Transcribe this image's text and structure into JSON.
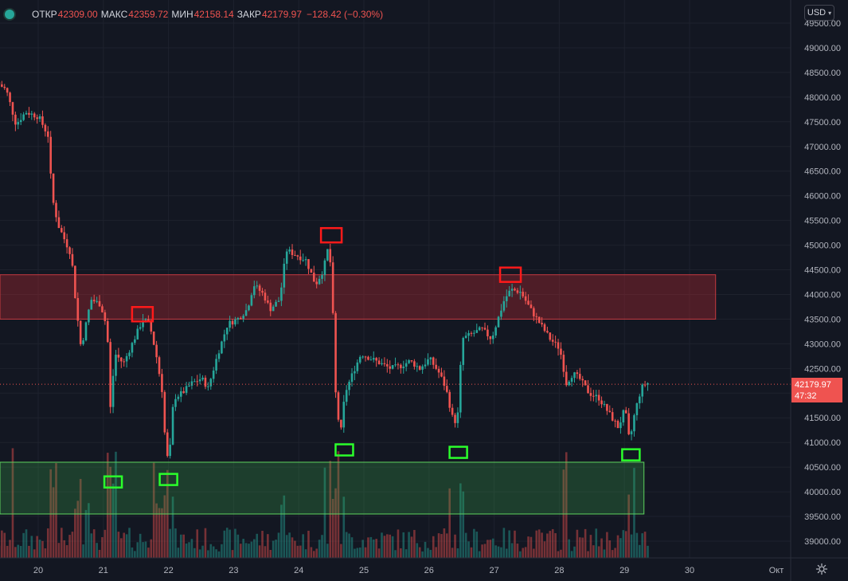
{
  "legend": {
    "open_label": "ОТКР",
    "open": "42309.00",
    "high_label": "МАКС",
    "high": "42359.72",
    "low_label": "МИН",
    "low": "42158.14",
    "close_label": "ЗАКР",
    "close": "42179.97",
    "change": "−128.42 (−0.30%)"
  },
  "currency": "USD",
  "last_price": {
    "value": "42179.97",
    "countdown": "47:32"
  },
  "colors": {
    "up": "#26a69a",
    "down": "#ef5350",
    "background": "#131722",
    "resistance_zone": "#5c1f24",
    "support_zone": "#1d4a2a",
    "marker_red": "#ff1a1a",
    "marker_green": "#2bff2b"
  },
  "chart_data": {
    "type": "candlestick",
    "symbol_timeframe": "hourly",
    "price_axis": {
      "min": 38800,
      "max": 49650,
      "ticks": [
        49500,
        49000,
        48500,
        48000,
        47500,
        47000,
        46500,
        46000,
        45500,
        45000,
        44500,
        44000,
        43500,
        43000,
        42500,
        42000,
        41500,
        41000,
        40500,
        40000,
        39500,
        39000
      ],
      "tick_labels": [
        "49500.00",
        "49000.00",
        "48500.00",
        "48000.00",
        "47500.00",
        "47000.00",
        "46500.00",
        "46000.00",
        "45500.00",
        "45000.00",
        "44500.00",
        "44000.00",
        "43500.00",
        "43000.00",
        "42500.00",
        "42000.00",
        "41500.00",
        "41000.00",
        "40500.00",
        "40000.00",
        "39500.00",
        "39000.00"
      ]
    },
    "time_axis": {
      "labels": [
        "20",
        "21",
        "22",
        "23",
        "24",
        "25",
        "26",
        "27",
        "28",
        "29",
        "30",
        "Окт"
      ],
      "day_start": 19.4,
      "day_end": 30.4
    },
    "last_price_line": 42179.97,
    "zones": [
      {
        "kind": "resistance",
        "day_from": 19.4,
        "day_to": 30.4,
        "price_low": 43500,
        "price_high": 44400
      },
      {
        "kind": "support",
        "day_from": 19.4,
        "day_to": 29.3,
        "price_low": 39550,
        "price_high": 40600
      }
    ],
    "markers": [
      {
        "kind": "high",
        "day": 21.6,
        "price": 43600
      },
      {
        "kind": "high",
        "day": 24.5,
        "price": 45200
      },
      {
        "kind": "high",
        "day": 27.25,
        "price": 44400
      },
      {
        "kind": "low",
        "day": 21.15,
        "price": 40200
      },
      {
        "kind": "low",
        "day": 22.0,
        "price": 40250
      },
      {
        "kind": "low",
        "day": 24.7,
        "price": 40850
      },
      {
        "kind": "low",
        "day": 26.45,
        "price": 40800
      },
      {
        "kind": "low",
        "day": 29.1,
        "price": 40750
      }
    ],
    "path_points": [
      [
        19.4,
        48300
      ],
      [
        19.55,
        48150
      ],
      [
        19.7,
        47450
      ],
      [
        19.85,
        47700
      ],
      [
        20.05,
        47600
      ],
      [
        20.2,
        47200
      ],
      [
        20.25,
        46000
      ],
      [
        20.35,
        45400
      ],
      [
        20.45,
        45100
      ],
      [
        20.55,
        44800
      ],
      [
        20.62,
        43800
      ],
      [
        20.7,
        42900
      ],
      [
        20.85,
        43900
      ],
      [
        21.0,
        43800
      ],
      [
        21.1,
        43300
      ],
      [
        21.15,
        41700
      ],
      [
        21.22,
        42800
      ],
      [
        21.35,
        42600
      ],
      [
        21.45,
        42900
      ],
      [
        21.55,
        43200
      ],
      [
        21.65,
        43500
      ],
      [
        21.75,
        43400
      ],
      [
        21.85,
        42800
      ],
      [
        21.95,
        42000
      ],
      [
        22.0,
        40800
      ],
      [
        22.05,
        40600
      ],
      [
        22.12,
        41900
      ],
      [
        22.25,
        42000
      ],
      [
        22.4,
        42200
      ],
      [
        22.55,
        42300
      ],
      [
        22.65,
        42100
      ],
      [
        22.8,
        42800
      ],
      [
        22.95,
        43400
      ],
      [
        23.1,
        43500
      ],
      [
        23.25,
        43700
      ],
      [
        23.35,
        44200
      ],
      [
        23.5,
        44000
      ],
      [
        23.6,
        43700
      ],
      [
        23.75,
        43900
      ],
      [
        23.85,
        44900
      ],
      [
        24.0,
        44800
      ],
      [
        24.15,
        44700
      ],
      [
        24.3,
        44200
      ],
      [
        24.42,
        44500
      ],
      [
        24.5,
        45000
      ],
      [
        24.55,
        44300
      ],
      [
        24.6,
        42100
      ],
      [
        24.68,
        41100
      ],
      [
        24.75,
        42000
      ],
      [
        24.9,
        42500
      ],
      [
        25.0,
        42800
      ],
      [
        25.15,
        42700
      ],
      [
        25.3,
        42600
      ],
      [
        25.45,
        42500
      ],
      [
        25.6,
        42550
      ],
      [
        25.75,
        42650
      ],
      [
        25.9,
        42500
      ],
      [
        26.05,
        42700
      ],
      [
        26.2,
        42400
      ],
      [
        26.3,
        42100
      ],
      [
        26.42,
        41400
      ],
      [
        26.48,
        41500
      ],
      [
        26.55,
        43100
      ],
      [
        26.7,
        43200
      ],
      [
        26.85,
        43300
      ],
      [
        27.0,
        43100
      ],
      [
        27.1,
        43500
      ],
      [
        27.2,
        43900
      ],
      [
        27.3,
        44100
      ],
      [
        27.45,
        44050
      ],
      [
        27.6,
        43700
      ],
      [
        27.75,
        43400
      ],
      [
        27.9,
        43100
      ],
      [
        28.05,
        42900
      ],
      [
        28.15,
        42200
      ],
      [
        28.25,
        42400
      ],
      [
        28.35,
        42300
      ],
      [
        28.5,
        42000
      ],
      [
        28.65,
        41900
      ],
      [
        28.8,
        41600
      ],
      [
        28.95,
        41300
      ],
      [
        29.05,
        41700
      ],
      [
        29.12,
        41000
      ],
      [
        29.2,
        41600
      ],
      [
        29.3,
        42100
      ],
      [
        29.37,
        42200
      ]
    ]
  }
}
